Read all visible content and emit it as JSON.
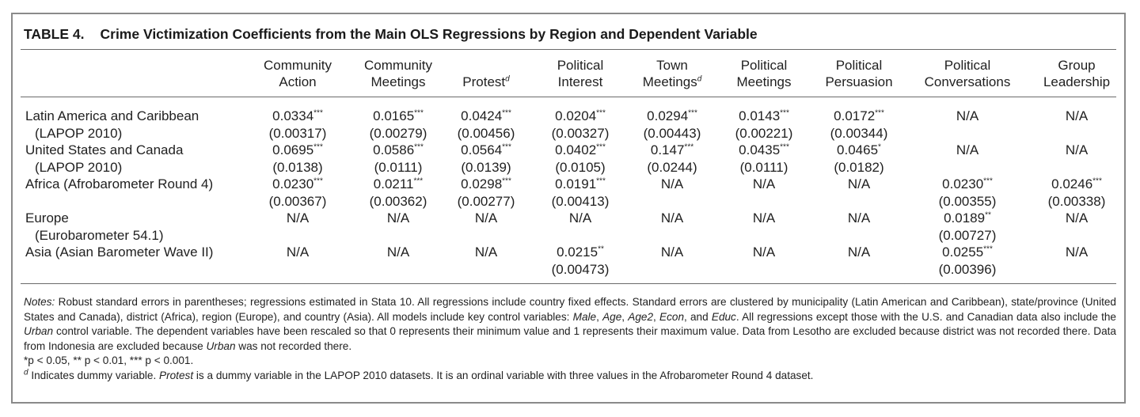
{
  "table": {
    "number": "TABLE 4.",
    "title": "Crime Victimization Coefficients from the Main OLS Regressions by Region and Dependent Variable",
    "columns": [
      {
        "line1": "Community",
        "line2": "Action",
        "mark": ""
      },
      {
        "line1": "Community",
        "line2": "Meetings",
        "mark": ""
      },
      {
        "line1": "",
        "line2": "Protest",
        "mark": "d"
      },
      {
        "line1": "Political",
        "line2": "Interest",
        "mark": ""
      },
      {
        "line1": "Town",
        "line2": "Meetings",
        "mark": "d"
      },
      {
        "line1": "Political",
        "line2": "Meetings",
        "mark": ""
      },
      {
        "line1": "Political",
        "line2": "Persuasion",
        "mark": ""
      },
      {
        "line1": "Political",
        "line2": "Conversations",
        "mark": ""
      },
      {
        "line1": "Group",
        "line2": "Leadership",
        "mark": ""
      }
    ],
    "rows": [
      {
        "label1": "Latin America and Caribbean",
        "label2": "(LAPOP 2010)",
        "cells": [
          {
            "coef": "0.0334",
            "stars": "***",
            "se": "(0.00317)"
          },
          {
            "coef": "0.0165",
            "stars": "***",
            "se": "(0.00279)"
          },
          {
            "coef": "0.0424",
            "stars": "***",
            "se": "(0.00456)"
          },
          {
            "coef": "0.0204",
            "stars": "***",
            "se": "(0.00327)"
          },
          {
            "coef": "0.0294",
            "stars": "***",
            "se": "(0.00443)"
          },
          {
            "coef": "0.0143",
            "stars": "***",
            "se": "(0.00221)"
          },
          {
            "coef": "0.0172",
            "stars": "***",
            "se": "(0.00344)"
          },
          {
            "coef": "N/A",
            "stars": "",
            "se": ""
          },
          {
            "coef": "N/A",
            "stars": "",
            "se": ""
          }
        ]
      },
      {
        "label1": "United States and Canada",
        "label2": "(LAPOP 2010)",
        "cells": [
          {
            "coef": "0.0695",
            "stars": "***",
            "se": "(0.0138)"
          },
          {
            "coef": "0.0586",
            "stars": "***",
            "se": "(0.0111)"
          },
          {
            "coef": "0.0564",
            "stars": "***",
            "se": "(0.0139)"
          },
          {
            "coef": "0.0402",
            "stars": "***",
            "se": "(0.0105)"
          },
          {
            "coef": "0.147",
            "stars": "***",
            "se": "(0.0244)"
          },
          {
            "coef": "0.0435",
            "stars": "***",
            "se": "(0.0111)"
          },
          {
            "coef": "0.0465",
            "stars": "*",
            "se": "(0.0182)"
          },
          {
            "coef": "N/A",
            "stars": "",
            "se": ""
          },
          {
            "coef": "N/A",
            "stars": "",
            "se": ""
          }
        ]
      },
      {
        "label1": "Africa (Afrobarometer Round 4)",
        "label2": "",
        "cells": [
          {
            "coef": "0.0230",
            "stars": "***",
            "se": "(0.00367)"
          },
          {
            "coef": "0.0211",
            "stars": "***",
            "se": "(0.00362)"
          },
          {
            "coef": "0.0298",
            "stars": "***",
            "se": "(0.00277)"
          },
          {
            "coef": "0.0191",
            "stars": "***",
            "se": "(0.00413)"
          },
          {
            "coef": "N/A",
            "stars": "",
            "se": ""
          },
          {
            "coef": "N/A",
            "stars": "",
            "se": ""
          },
          {
            "coef": "N/A",
            "stars": "",
            "se": ""
          },
          {
            "coef": "0.0230",
            "stars": "***",
            "se": "(0.00355)"
          },
          {
            "coef": "0.0246",
            "stars": "***",
            "se": "(0.00338)"
          }
        ]
      },
      {
        "label1": "Europe",
        "label2": "(Eurobarometer 54.1)",
        "cells": [
          {
            "coef": "N/A",
            "stars": "",
            "se": ""
          },
          {
            "coef": "N/A",
            "stars": "",
            "se": ""
          },
          {
            "coef": "N/A",
            "stars": "",
            "se": ""
          },
          {
            "coef": "N/A",
            "stars": "",
            "se": ""
          },
          {
            "coef": "N/A",
            "stars": "",
            "se": ""
          },
          {
            "coef": "N/A",
            "stars": "",
            "se": ""
          },
          {
            "coef": "N/A",
            "stars": "",
            "se": ""
          },
          {
            "coef": "0.0189",
            "stars": "**",
            "se": "(0.00727)"
          },
          {
            "coef": "N/A",
            "stars": "",
            "se": ""
          }
        ]
      },
      {
        "label1": "Asia (Asian Barometer Wave II)",
        "label2": "",
        "cells": [
          {
            "coef": "N/A",
            "stars": "",
            "se": ""
          },
          {
            "coef": "N/A",
            "stars": "",
            "se": ""
          },
          {
            "coef": "N/A",
            "stars": "",
            "se": ""
          },
          {
            "coef": "0.0215",
            "stars": "**",
            "se": "(0.00473)"
          },
          {
            "coef": "N/A",
            "stars": "",
            "se": ""
          },
          {
            "coef": "N/A",
            "stars": "",
            "se": ""
          },
          {
            "coef": "N/A",
            "stars": "",
            "se": ""
          },
          {
            "coef": "0.0255",
            "stars": "***",
            "se": "(0.00396)"
          },
          {
            "coef": "N/A",
            "stars": "",
            "se": ""
          }
        ]
      }
    ],
    "notes": {
      "notes_label": "Notes:",
      "p1_a": " Robust standard errors in parentheses; regressions estimated in Stata 10. All regressions include country fixed effects. Standard errors are clustered by municipality (Latin American and Caribbean), state/province (United States and Canada), district (Africa), region (Europe), and country (Asia). All models include key control variables: ",
      "v_male": "Male",
      "sep1": ", ",
      "v_age": "Age",
      "sep2": ", ",
      "v_age2": "Age2",
      "sep3": ", ",
      "v_econ": "Econ",
      "sep4": ", and ",
      "v_educ": "Educ",
      "p1_b": ". All regressions except those with the U.S. and Canadian data also include the ",
      "v_urban": "Urban",
      "p1_c": " control variable. The dependent variables have been rescaled so that 0 represents their minimum value and 1 represents their maximum value. Data from Lesotho are excluded because district was not recorded there. Data from Indonesia are excluded because ",
      "v_urban2": "Urban",
      "p1_d": " was not recorded there.",
      "sig_line": "*p < 0.05, ** p < 0.01, *** p < 0.001.",
      "d_mark": "d",
      "d_a": " Indicates dummy variable. ",
      "v_protest": "Protest",
      "d_b": " is a dummy variable in the LAPOP 2010 datasets. It is an ordinal variable with three values in the Afrobarometer Round 4 dataset."
    }
  }
}
